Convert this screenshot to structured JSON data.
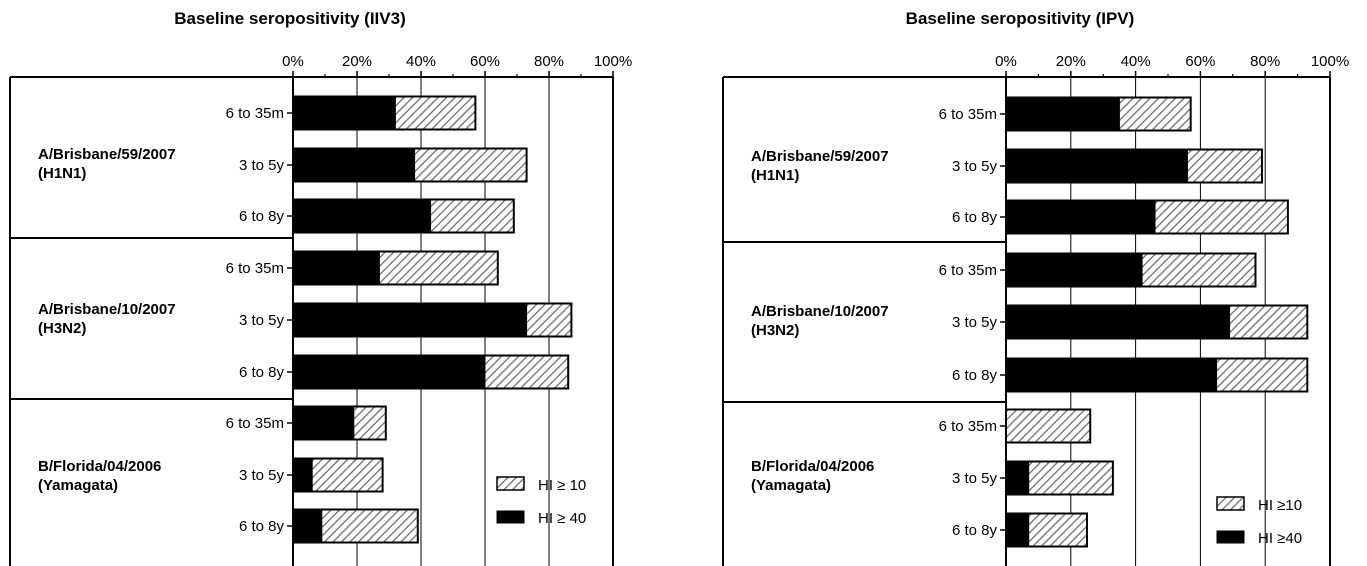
{
  "chart_data": [
    {
      "type": "bar",
      "orientation": "horizontal",
      "title": "Baseline seropositivity  (IIV3)",
      "xlim": [
        0,
        100
      ],
      "x_ticks": [
        "0%",
        "20%",
        "40%",
        "60%",
        "80%",
        "100%"
      ],
      "grid": true,
      "legend_position": "bottom-right",
      "groups": [
        {
          "name": "A/Brisbane/59/2007",
          "subtype": "(H1N1)",
          "categories": [
            "6 to 35m",
            "3 to 5y",
            "6 to 8y"
          ]
        },
        {
          "name": "A/Brisbane/10/2007",
          "subtype": "(H3N2)",
          "categories": [
            "6 to 35m",
            "3 to 5y",
            "6 to 8y"
          ]
        },
        {
          "name": "B/Florida/04/2006",
          "subtype": "(Yamagata)",
          "categories": [
            "6 to 35m",
            "3 to 5y",
            "6 to 8y"
          ]
        }
      ],
      "series": [
        {
          "name": "HI ≥ 10",
          "values": [
            57,
            73,
            69,
            64,
            87,
            86,
            29,
            28,
            39
          ]
        },
        {
          "name": "HI ≥ 40",
          "values": [
            32,
            38,
            43,
            27,
            73,
            60,
            19,
            6,
            9
          ]
        }
      ]
    },
    {
      "type": "bar",
      "orientation": "horizontal",
      "title": "Baseline seropositivity (IPV)",
      "xlim": [
        0,
        100
      ],
      "x_ticks": [
        "0%",
        "20%",
        "40%",
        "60%",
        "80%",
        "100%"
      ],
      "grid": true,
      "legend_position": "bottom-right",
      "groups": [
        {
          "name": "A/Brisbane/59/2007",
          "subtype": "(H1N1)",
          "categories": [
            "6 to 35m",
            "3 to 5y",
            "6 to 8y"
          ]
        },
        {
          "name": "A/Brisbane/10/2007",
          "subtype": "(H3N2)",
          "categories": [
            "6 to 35m",
            "3 to 5y",
            "6 to 8y"
          ]
        },
        {
          "name": "B/Florida/04/2006",
          "subtype": "(Yamagata)",
          "categories": [
            "6 to 35m",
            "3 to 5y",
            "6 to 8y"
          ]
        }
      ],
      "series": [
        {
          "name": "HI ≥10",
          "values": [
            57,
            79,
            87,
            77,
            93,
            93,
            26,
            33,
            25
          ]
        },
        {
          "name": "HI ≥40",
          "values": [
            35,
            56,
            46,
            42,
            69,
            65,
            0,
            7,
            7
          ]
        }
      ]
    }
  ]
}
